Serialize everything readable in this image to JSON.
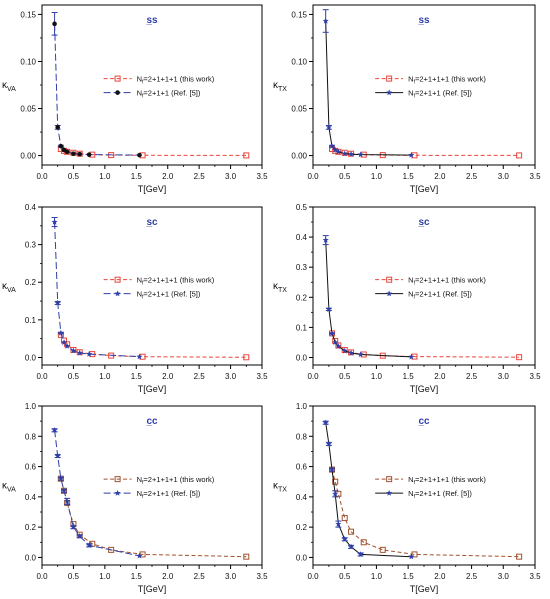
{
  "chart_data": [
    {
      "type": "line",
      "title": "s̲s",
      "xlabel": "T[GeV]",
      "ylabel": "κ_VA",
      "xlim": [
        0.0,
        3.5
      ],
      "ylim": [
        -0.01,
        0.16
      ],
      "xticks": [
        0.0,
        0.5,
        1.0,
        1.5,
        2.0,
        2.5,
        3.0,
        3.5
      ],
      "xtick_labels": [
        "0.0",
        "0.5",
        "1.0",
        "1.5",
        "2.0",
        "2.5",
        "3.0",
        "3.5"
      ],
      "yticks": [
        0.0,
        0.05,
        0.1,
        0.15
      ],
      "ytick_labels": [
        "0.00",
        "0.05",
        "0.10",
        "0.15"
      ],
      "legend_position": "right",
      "series": [
        {
          "name": "N_f=2+1+1+1 (this work)",
          "color": "#e8453c",
          "marker": "open-square",
          "dash": "dashed",
          "x": [
            0.3,
            0.35,
            0.4,
            0.5,
            0.6,
            0.8,
            1.1,
            1.6,
            3.25
          ],
          "y": [
            0.007,
            0.005,
            0.004,
            0.003,
            0.002,
            0.001,
            0.0005,
            0.0003,
            0.0002
          ]
        },
        {
          "name": "N_f=2+1+1 (Ref. [5])",
          "color": "#2f3fa8",
          "marker": "filled-circle",
          "dash": "longdash",
          "x": [
            0.2,
            0.25,
            0.3,
            0.35,
            0.4,
            0.5,
            0.6,
            0.75,
            1.55
          ],
          "y": [
            0.14,
            0.03,
            0.01,
            0.006,
            0.004,
            0.002,
            0.0015,
            0.001,
            0.0005
          ],
          "error": [
            0.012,
            0.002,
            0.001,
            0,
            0,
            0,
            0,
            0,
            0
          ]
        }
      ]
    },
    {
      "type": "line",
      "title": "s̲s",
      "xlabel": "T[GeV]",
      "ylabel": "κ_TX",
      "xlim": [
        0.0,
        3.5
      ],
      "ylim": [
        -0.01,
        0.16
      ],
      "xticks": [
        0.0,
        0.5,
        1.0,
        1.5,
        2.0,
        2.5,
        3.0,
        3.5
      ],
      "xtick_labels": [
        "0.0",
        "0.5",
        "1.0",
        "1.5",
        "2.0",
        "2.5",
        "3.0",
        "3.5"
      ],
      "yticks": [
        0.0,
        0.05,
        0.1,
        0.15
      ],
      "ytick_labels": [
        "0.00",
        "0.05",
        "0.10",
        "0.15"
      ],
      "legend_position": "right",
      "series": [
        {
          "name": "N_f=2+1+1+1 (this work)",
          "color": "#e8453c",
          "marker": "open-square",
          "dash": "dashed",
          "x": [
            0.3,
            0.35,
            0.4,
            0.5,
            0.6,
            0.8,
            1.1,
            1.6,
            3.25
          ],
          "y": [
            0.007,
            0.005,
            0.004,
            0.003,
            0.002,
            0.001,
            0.0005,
            0.0003,
            0.0002
          ]
        },
        {
          "name": "N_f=2+1+1 (Ref. [5])",
          "color": "#2f3fa8",
          "marker": "filled-star",
          "dash": "solid",
          "x": [
            0.2,
            0.25,
            0.3,
            0.35,
            0.4,
            0.5,
            0.6,
            0.75,
            1.55
          ],
          "y": [
            0.143,
            0.03,
            0.01,
            0.006,
            0.004,
            0.002,
            0.0015,
            0.001,
            0.0005
          ],
          "error": [
            0.012,
            0.002,
            0.001,
            0,
            0,
            0,
            0,
            0,
            0
          ]
        }
      ]
    },
    {
      "type": "line",
      "title": "s̲c",
      "xlabel": "T[GeV]",
      "ylabel": "κ_VA",
      "xlim": [
        0.0,
        3.5
      ],
      "ylim": [
        -0.02,
        0.4
      ],
      "xticks": [
        0.0,
        0.5,
        1.0,
        1.5,
        2.0,
        2.5,
        3.0,
        3.5
      ],
      "xtick_labels": [
        "0.0",
        "0.5",
        "1.0",
        "1.5",
        "2.0",
        "2.5",
        "3.0",
        "3.5"
      ],
      "yticks": [
        0.0,
        0.1,
        0.2,
        0.3,
        0.4
      ],
      "ytick_labels": [
        "0.0",
        "0.1",
        "0.2",
        "0.3",
        "0.4"
      ],
      "legend_position": "right",
      "series": [
        {
          "name": "N_f=2+1+1+1 (this work)",
          "color": "#e8453c",
          "marker": "open-square",
          "dash": "dashed",
          "x": [
            0.3,
            0.35,
            0.4,
            0.5,
            0.6,
            0.8,
            1.1,
            1.6,
            3.25
          ],
          "y": [
            0.06,
            0.045,
            0.035,
            0.02,
            0.014,
            0.009,
            0.005,
            0.002,
            0.0005
          ]
        },
        {
          "name": "N_f=2+1+1 (Ref. [5])",
          "color": "#2f3fa8",
          "marker": "filled-star",
          "dash": "longdash",
          "x": [
            0.2,
            0.25,
            0.3,
            0.35,
            0.4,
            0.5,
            0.6,
            0.75,
            1.55
          ],
          "y": [
            0.36,
            0.145,
            0.065,
            0.04,
            0.03,
            0.018,
            0.012,
            0.009,
            0.002
          ],
          "error": [
            0.012,
            0.004,
            0.002,
            0,
            0,
            0,
            0,
            0,
            0
          ]
        }
      ]
    },
    {
      "type": "line",
      "title": "s̲c",
      "xlabel": "T[GeV]",
      "ylabel": "κ_TX",
      "xlim": [
        0.0,
        3.5
      ],
      "ylim": [
        -0.025,
        0.5
      ],
      "xticks": [
        0.0,
        0.5,
        1.0,
        1.5,
        2.0,
        2.5,
        3.0,
        3.5
      ],
      "xtick_labels": [
        "0.0",
        "0.5",
        "1.0",
        "1.5",
        "2.0",
        "2.5",
        "3.0",
        "3.5"
      ],
      "yticks": [
        0.0,
        0.1,
        0.2,
        0.3,
        0.4,
        0.5
      ],
      "ytick_labels": [
        "0.0",
        "0.1",
        "0.2",
        "0.3",
        "0.4",
        "0.5"
      ],
      "legend_position": "right",
      "series": [
        {
          "name": "N_f=2+1+1+1 (this work)",
          "color": "#e8453c",
          "marker": "open-square",
          "dash": "dashed",
          "x": [
            0.3,
            0.35,
            0.4,
            0.5,
            0.6,
            0.8,
            1.1,
            1.6,
            3.25
          ],
          "y": [
            0.08,
            0.055,
            0.04,
            0.025,
            0.017,
            0.01,
            0.006,
            0.003,
            0.001
          ]
        },
        {
          "name": "N_f=2+1+1 (Ref. [5])",
          "color": "#2f3fa8",
          "marker": "filled-star",
          "dash": "solid",
          "x": [
            0.2,
            0.25,
            0.3,
            0.35,
            0.4,
            0.5,
            0.6,
            0.75,
            1.55
          ],
          "y": [
            0.39,
            0.16,
            0.08,
            0.05,
            0.037,
            0.022,
            0.015,
            0.01,
            0.002
          ],
          "error": [
            0.015,
            0.004,
            0.002,
            0,
            0,
            0,
            0,
            0,
            0
          ]
        }
      ]
    },
    {
      "type": "line",
      "title": "c̲c",
      "xlabel": "T[GeV]",
      "ylabel": "κ_VA",
      "xlim": [
        0.0,
        3.5
      ],
      "ylim": [
        -0.05,
        1.0
      ],
      "xticks": [
        0.0,
        0.5,
        1.0,
        1.5,
        2.0,
        2.5,
        3.0,
        3.5
      ],
      "xtick_labels": [
        "0.0",
        "0.5",
        "1.0",
        "1.5",
        "2.0",
        "2.5",
        "3.0",
        "3.5"
      ],
      "yticks": [
        0.0,
        0.2,
        0.4,
        0.6,
        0.8,
        1.0
      ],
      "ytick_labels": [
        "0.0",
        "0.2",
        "0.4",
        "0.6",
        "0.8",
        "1.0"
      ],
      "legend_position": "right",
      "series": [
        {
          "name": "N_f=2+1+1+1 (this work)",
          "color": "#a0522d",
          "marker": "open-square",
          "dash": "dashed",
          "x": [
            0.3,
            0.35,
            0.4,
            0.5,
            0.6,
            0.8,
            1.1,
            1.6,
            3.25
          ],
          "y": [
            0.52,
            0.44,
            0.36,
            0.22,
            0.15,
            0.09,
            0.05,
            0.02,
            0.005
          ]
        },
        {
          "name": "N_f=2+1+1 (Ref. [5])",
          "color": "#2f3fa8",
          "marker": "filled-star",
          "dash": "longdash",
          "x": [
            0.2,
            0.25,
            0.3,
            0.35,
            0.4,
            0.5,
            0.6,
            0.75,
            1.55
          ],
          "y": [
            0.84,
            0.67,
            0.52,
            0.44,
            0.37,
            0.2,
            0.14,
            0.08,
            0.01
          ],
          "error": [
            0.01,
            0.01,
            0.01,
            0.01,
            0.02,
            0.01,
            0.01,
            0.01,
            0
          ]
        }
      ]
    },
    {
      "type": "line",
      "title": "c̲c",
      "xlabel": "T[GeV]",
      "ylabel": "κ_TX",
      "xlim": [
        0.0,
        3.5
      ],
      "ylim": [
        -0.05,
        1.0
      ],
      "xticks": [
        0.0,
        0.5,
        1.0,
        1.5,
        2.0,
        2.5,
        3.0,
        3.5
      ],
      "xtick_labels": [
        "0.0",
        "0.5",
        "1.0",
        "1.5",
        "2.0",
        "2.5",
        "3.0",
        "3.5"
      ],
      "yticks": [
        0.0,
        0.2,
        0.4,
        0.6,
        0.8,
        1.0
      ],
      "ytick_labels": [
        "0.0",
        "0.2",
        "0.4",
        "0.6",
        "0.8",
        "1.0"
      ],
      "legend_position": "right",
      "series": [
        {
          "name": "N_f=2+1+1+1 (this work)",
          "color": "#a0522d",
          "marker": "open-square",
          "dash": "dashed",
          "x": [
            0.3,
            0.35,
            0.4,
            0.5,
            0.6,
            0.8,
            1.1,
            1.6,
            3.25
          ],
          "y": [
            0.58,
            0.5,
            0.42,
            0.26,
            0.17,
            0.1,
            0.05,
            0.02,
            0.005
          ]
        },
        {
          "name": "N_f=2+1+1 (Ref. [5])",
          "color": "#2f3fa8",
          "marker": "filled-star",
          "dash": "solid",
          "x": [
            0.2,
            0.25,
            0.3,
            0.35,
            0.4,
            0.5,
            0.6,
            0.75,
            1.55
          ],
          "y": [
            0.89,
            0.75,
            0.58,
            0.42,
            0.22,
            0.12,
            0.07,
            0.02,
            0.005
          ],
          "error": [
            0.01,
            0.01,
            0.01,
            0.02,
            0.02,
            0.01,
            0.01,
            0.01,
            0
          ]
        }
      ]
    }
  ]
}
